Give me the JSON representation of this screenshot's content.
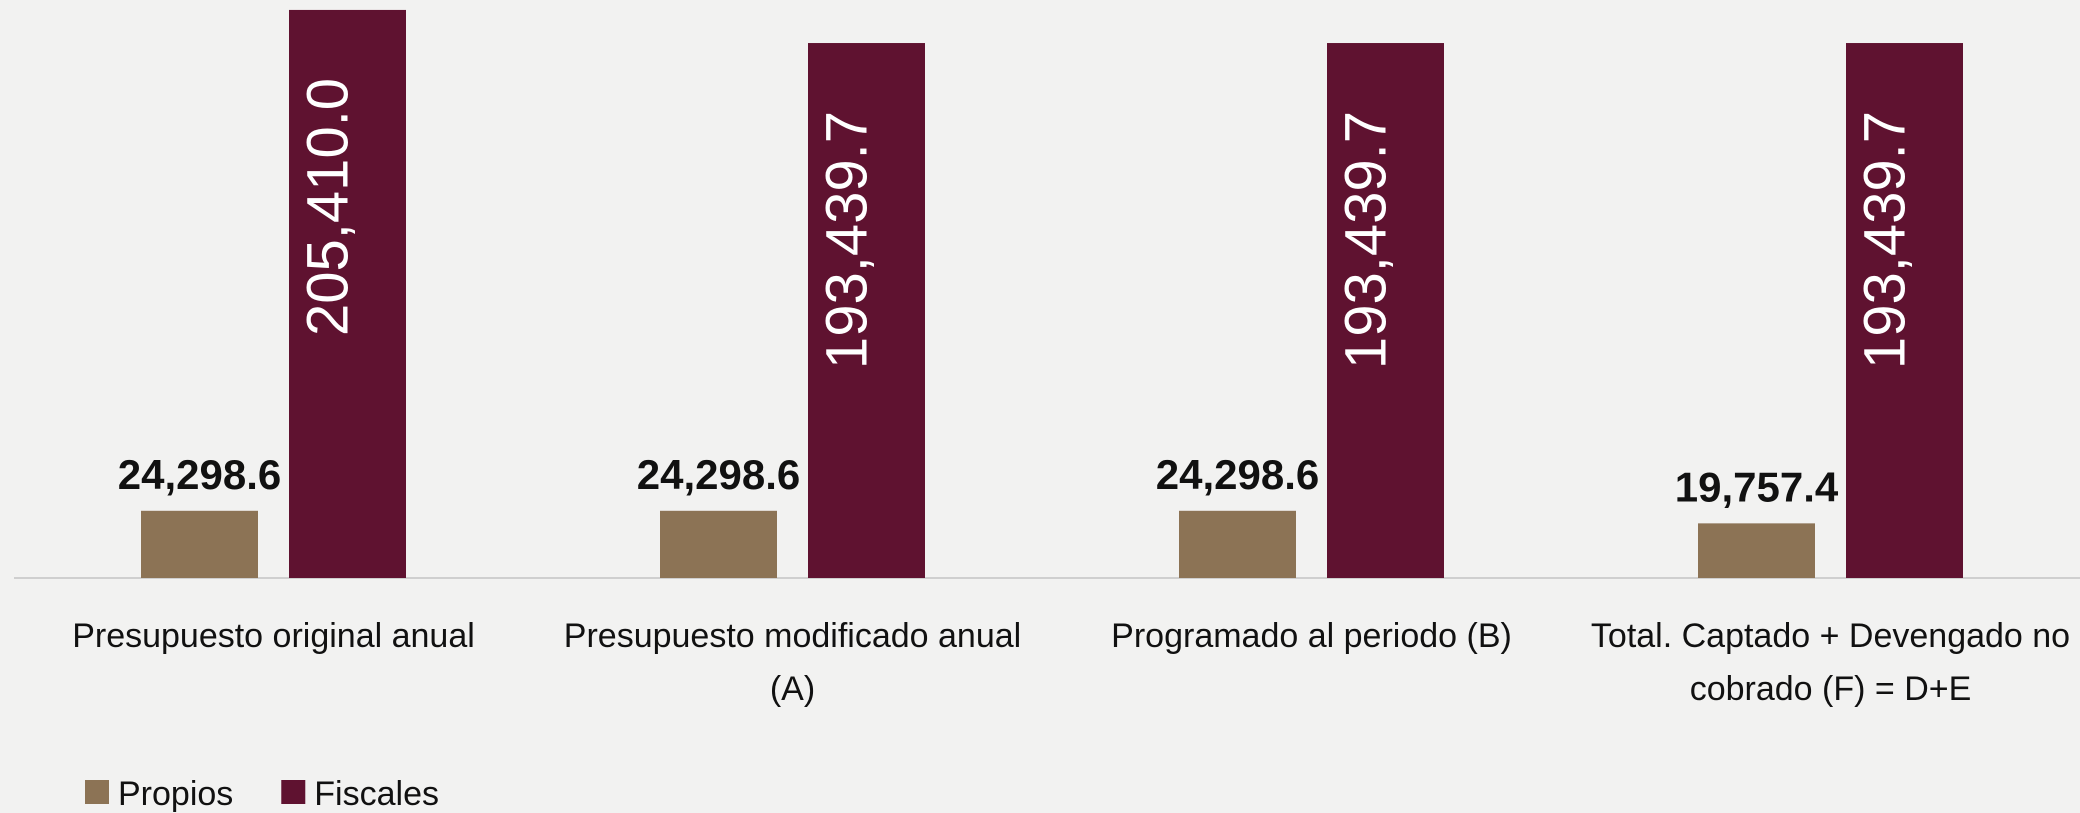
{
  "chart_data": {
    "type": "bar",
    "categories": [
      "Presupuesto original anual",
      "Presupuesto modificado anual (A)",
      "Programado al periodo (B)",
      "Total. Captado + Devengado no cobrado (F) = D+E"
    ],
    "series": [
      {
        "name": "Propios",
        "color": "#8c7355",
        "values": [
          24298.6,
          24298.6,
          24298.6,
          19757.4
        ],
        "value_labels": [
          "24,298.6",
          "24,298.6",
          "24,298.6",
          "19,757.4"
        ]
      },
      {
        "name": "Fiscales",
        "color": "#5f1230",
        "values": [
          205410.0,
          193439.7,
          193439.7,
          193439.7
        ],
        "value_labels": [
          "205,410.0",
          "193,439.7",
          "193,439.7",
          "193,439.7"
        ]
      }
    ],
    "ylim": [
      0,
      209000
    ],
    "legend": "bottom-left"
  }
}
